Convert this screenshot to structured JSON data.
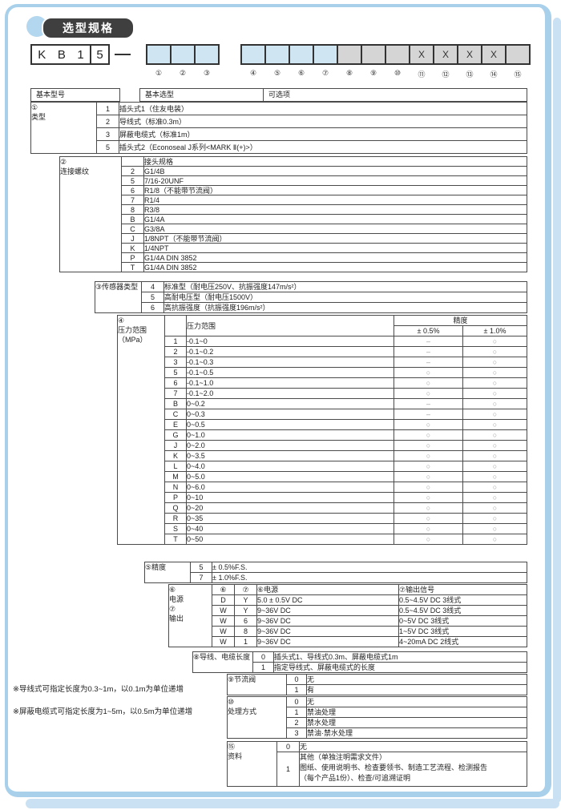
{
  "page_title": "选型规格",
  "model_code": {
    "prefix_chars": [
      "K",
      "B",
      "1",
      "5"
    ],
    "groups": [
      {
        "boxes": [
          {
            "num": "①",
            "fill": "blue",
            "mark": ""
          },
          {
            "num": "②",
            "fill": "blue",
            "mark": ""
          },
          {
            "num": "③",
            "fill": "blue",
            "mark": ""
          }
        ]
      },
      {
        "boxes": [
          {
            "num": "④",
            "fill": "blue",
            "mark": ""
          },
          {
            "num": "⑤",
            "fill": "blue",
            "mark": ""
          },
          {
            "num": "⑥",
            "fill": "blue",
            "mark": ""
          },
          {
            "num": "⑦",
            "fill": "blue",
            "mark": ""
          },
          {
            "num": "⑧",
            "fill": "gray",
            "mark": ""
          },
          {
            "num": "⑨",
            "fill": "gray",
            "mark": ""
          },
          {
            "num": "⑩",
            "fill": "gray",
            "mark": ""
          },
          {
            "num": "⑪",
            "fill": "gray",
            "mark": "X"
          },
          {
            "num": "⑫",
            "fill": "gray",
            "mark": "X"
          },
          {
            "num": "⑬",
            "fill": "gray",
            "mark": "X"
          },
          {
            "num": "⑭",
            "fill": "gray",
            "mark": "X"
          },
          {
            "num": "⑮",
            "fill": "gray",
            "mark": ""
          }
        ]
      }
    ]
  },
  "table_header": {
    "col1": "基本型号",
    "col2": "基本选型",
    "col3": "可选项"
  },
  "sections": [
    {
      "id": "type",
      "kind": "simple",
      "label": "①\n类型",
      "rows": [
        {
          "code": "1",
          "desc": "插头式1（住友电装）"
        },
        {
          "code": "2",
          "desc": "导线式（标准0.3m）"
        },
        {
          "code": "3",
          "desc": "屏蔽电缆式（标准1m）"
        },
        {
          "code": "5",
          "desc": "插头式2（Econoseal J系列<MARK Ⅱ(+)>）"
        }
      ]
    },
    {
      "id": "thread",
      "kind": "simple",
      "label": "②\n连接螺纹",
      "header_desc": "接头规格",
      "rows": [
        {
          "code": "2",
          "desc": "G1/4B"
        },
        {
          "code": "5",
          "desc": "7/16-20UNF"
        },
        {
          "code": "6",
          "desc": "R1/8（不能带节流阀）"
        },
        {
          "code": "7",
          "desc": "R1/4"
        },
        {
          "code": "8",
          "desc": "R3/8"
        },
        {
          "code": "B",
          "desc": "G1/4A"
        },
        {
          "code": "C",
          "desc": "G3/8A"
        },
        {
          "code": "J",
          "desc": "1/8NPT（不能带节流阀）"
        },
        {
          "code": "K",
          "desc": "1/4NPT"
        },
        {
          "code": "P",
          "desc": "G1/4A DIN 3852"
        },
        {
          "code": "T",
          "desc": "G1/4A DIN 3852"
        }
      ]
    },
    {
      "id": "sensor",
      "kind": "simple",
      "label": "③传感器类型",
      "rows": [
        {
          "code": "4",
          "desc": "标准型（耐电压250V、抗振强度147m/s²）"
        },
        {
          "code": "5",
          "desc": "高耐电压型（耐电压1500V）"
        },
        {
          "code": "6",
          "desc": "高抗振强度（抗振强度196m/s²）"
        }
      ]
    },
    {
      "id": "pressure",
      "kind": "pressure",
      "label": "④\n压力范围\n（MPa）",
      "headers": {
        "desc": "压力范围",
        "acc": "精度",
        "acc05": "± 0.5%",
        "acc10": "± 1.0%"
      },
      "rows": [
        {
          "code": "1",
          "desc": "-0.1~0",
          "a05": "–",
          "a10": "○"
        },
        {
          "code": "2",
          "desc": "-0.1~0.2",
          "a05": "–",
          "a10": "○"
        },
        {
          "code": "3",
          "desc": "-0.1~0.3",
          "a05": "–",
          "a10": "○"
        },
        {
          "code": "5",
          "desc": "-0.1~0.5",
          "a05": "○",
          "a10": "○"
        },
        {
          "code": "6",
          "desc": "-0.1~1.0",
          "a05": "○",
          "a10": "○"
        },
        {
          "code": "7",
          "desc": "-0.1~2.0",
          "a05": "○",
          "a10": "○"
        },
        {
          "code": "B",
          "desc": "0~0.2",
          "a05": "–",
          "a10": "○"
        },
        {
          "code": "C",
          "desc": "0~0.3",
          "a05": "–",
          "a10": "○"
        },
        {
          "code": "E",
          "desc": "0~0.5",
          "a05": "○",
          "a10": "○"
        },
        {
          "code": "G",
          "desc": "0~1.0",
          "a05": "○",
          "a10": "○"
        },
        {
          "code": "J",
          "desc": "0~2.0",
          "a05": "○",
          "a10": "○"
        },
        {
          "code": "K",
          "desc": "0~3.5",
          "a05": "○",
          "a10": "○"
        },
        {
          "code": "L",
          "desc": "0~4.0",
          "a05": "○",
          "a10": "○"
        },
        {
          "code": "M",
          "desc": "0~5.0",
          "a05": "○",
          "a10": "○"
        },
        {
          "code": "N",
          "desc": "0~6.0",
          "a05": "○",
          "a10": "○"
        },
        {
          "code": "P",
          "desc": "0~10",
          "a05": "○",
          "a10": "○"
        },
        {
          "code": "Q",
          "desc": "0~20",
          "a05": "○",
          "a10": "○"
        },
        {
          "code": "R",
          "desc": "0~35",
          "a05": "○",
          "a10": "○"
        },
        {
          "code": "S",
          "desc": "0~40",
          "a05": "○",
          "a10": "○"
        },
        {
          "code": "T",
          "desc": "0~50",
          "a05": "○",
          "a10": "○"
        }
      ]
    },
    {
      "id": "accuracy",
      "kind": "simple",
      "label": "⑤精度",
      "rows": [
        {
          "code": "5",
          "desc": "± 0.5%F.S."
        },
        {
          "code": "7",
          "desc": "± 1.0%F.S."
        }
      ]
    },
    {
      "id": "power",
      "kind": "power",
      "label": "⑥\n电源\n⑦\n输出",
      "headers": {
        "c1": "⑥",
        "c2": "⑦",
        "desc": "⑥电源",
        "out": "⑦输出信号"
      },
      "rows": [
        {
          "c1": "D",
          "c2": "Y",
          "desc": "5.0 ± 0.5V DC",
          "out": "0.5~4.5V DC 3线式"
        },
        {
          "c1": "W",
          "c2": "Y",
          "desc": "9~36V DC",
          "out": "0.5~4.5V DC 3线式"
        },
        {
          "c1": "W",
          "c2": "6",
          "desc": "9~36V DC",
          "out": "0~5V DC 3线式"
        },
        {
          "c1": "W",
          "c2": "8",
          "desc": "9~36V DC",
          "out": "1~5V DC 3线式"
        },
        {
          "c1": "W",
          "c2": "1",
          "desc": "9~36V DC",
          "out": "4~20mA DC 2线式"
        }
      ]
    },
    {
      "id": "cable",
      "kind": "simple",
      "label": "⑧导线、电缆长度",
      "rows": [
        {
          "code": "0",
          "desc": "插头式1、导线式0.3m、屏蔽电缆式1m"
        },
        {
          "code": "1",
          "desc": "指定导线式、屏蔽电缆式的长度"
        }
      ]
    },
    {
      "id": "throttle",
      "kind": "simple",
      "label": "⑨节流阀",
      "rows": [
        {
          "code": "0",
          "desc": "无"
        },
        {
          "code": "1",
          "desc": "有"
        }
      ]
    },
    {
      "id": "treatment",
      "kind": "simple",
      "label": "⑩\n处理方式",
      "rows": [
        {
          "code": "0",
          "desc": "无"
        },
        {
          "code": "1",
          "desc": "禁油处理"
        },
        {
          "code": "2",
          "desc": "禁水处理"
        },
        {
          "code": "3",
          "desc": "禁油·禁水处理"
        }
      ]
    },
    {
      "id": "document",
      "kind": "simple",
      "label": "⑮\n资料",
      "rows": [
        {
          "code": "0",
          "desc": "无"
        },
        {
          "code": "1",
          "desc": "其他（单独注明需求文件）\n图纸、使用说明书、检查要领书、制造工艺流程、检测报告\n（每个产品1份）、检查/可追溯证明",
          "tall": true
        }
      ]
    }
  ],
  "footnotes": [
    "※导线式可指定长度为0.3~1m，以0.1m为单位递增",
    "※屏蔽电缆式可指定长度为1~5m，以0.5m为单位递增"
  ],
  "colors": {
    "cell_blue": "#cfe5f2",
    "cell_gray": "#d5d5d5",
    "frame_blue": "#a8d0ea",
    "badge_dark": "#3f3f3f",
    "border": "#4a4a4a"
  }
}
